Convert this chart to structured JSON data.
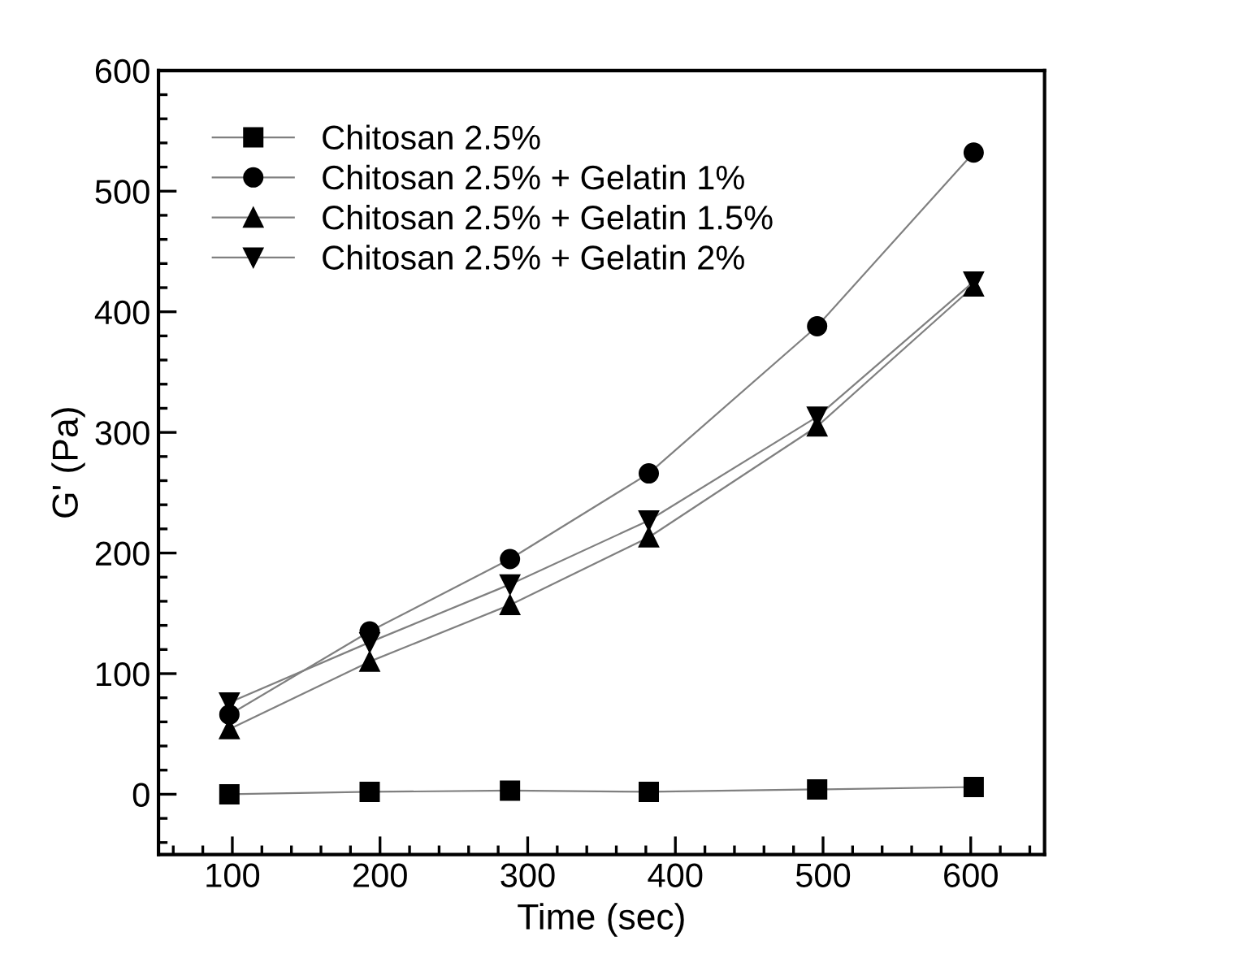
{
  "chart_data": {
    "type": "line",
    "xlabel": "Time (sec)",
    "ylabel": "G' (Pa)",
    "x": [
      98,
      193,
      288,
      382,
      496,
      602
    ],
    "series": [
      {
        "name": "Chitosan 2.5%",
        "color": "#000000",
        "marker": "square",
        "values": [
          0,
          2,
          3,
          2,
          4,
          6
        ]
      },
      {
        "name": "Chitosan 2.5% + Gelatin 1%",
        "color": "#000000",
        "marker": "circle",
        "values": [
          66,
          135,
          195,
          266,
          388,
          532
        ]
      },
      {
        "name": "Chitosan 2.5% + Gelatin 1.5%",
        "color": "#000000",
        "marker": "triangle",
        "values": [
          54,
          110,
          157,
          213,
          305,
          421
        ]
      },
      {
        "name": "Chitosan 2.5% + Gelatin 2%",
        "color": "#000000",
        "marker": "triangle_down",
        "values": [
          76,
          126,
          174,
          227,
          313,
          425
        ]
      }
    ],
    "xlim": [
      50,
      650
    ],
    "ylim": [
      -50,
      600
    ],
    "xticks": [
      {
        "value": 60,
        "label": null
      },
      {
        "value": 80,
        "label": null
      },
      100,
      {
        "value": 120,
        "label": null
      },
      {
        "value": 140,
        "label": null
      },
      {
        "value": 160,
        "label": null
      },
      {
        "value": 180,
        "label": null
      },
      200,
      {
        "value": 220,
        "label": null
      },
      {
        "value": 240,
        "label": null
      },
      {
        "value": 260,
        "label": null
      },
      {
        "value": 280,
        "label": null
      },
      300,
      {
        "value": 320,
        "label": null
      },
      {
        "value": 340,
        "label": null
      },
      {
        "value": 360,
        "label": null
      },
      {
        "value": 380,
        "label": null
      },
      400,
      {
        "value": 420,
        "label": null
      },
      {
        "value": 440,
        "label": null
      },
      {
        "value": 460,
        "label": null
      },
      {
        "value": 480,
        "label": null
      },
      500,
      {
        "value": 520,
        "label": null
      },
      {
        "value": 540,
        "label": null
      },
      {
        "value": 560,
        "label": null
      },
      {
        "value": 580,
        "label": null
      },
      600,
      {
        "value": 620,
        "label": null
      },
      {
        "value": 640,
        "label": null
      }
    ],
    "yticks": [
      {
        "value": -40,
        "label": null
      },
      {
        "value": -20,
        "label": null
      },
      0,
      {
        "value": 20,
        "label": null
      },
      {
        "value": 40,
        "label": null
      },
      {
        "value": 60,
        "label": null
      },
      {
        "value": 80,
        "label": null
      },
      100,
      {
        "value": 120,
        "label": null
      },
      {
        "value": 140,
        "label": null
      },
      {
        "value": 160,
        "label": null
      },
      {
        "value": 180,
        "label": null
      },
      200,
      {
        "value": 220,
        "label": null
      },
      {
        "value": 240,
        "label": null
      },
      {
        "value": 260,
        "label": null
      },
      {
        "value": 280,
        "label": null
      },
      300,
      {
        "value": 320,
        "label": null
      },
      {
        "value": 340,
        "label": null
      },
      {
        "value": 360,
        "label": null
      },
      {
        "value": 380,
        "label": null
      },
      400,
      {
        "value": 420,
        "label": null
      },
      {
        "value": 440,
        "label": null
      },
      {
        "value": 460,
        "label": null
      },
      {
        "value": 480,
        "label": null
      },
      500,
      {
        "value": 520,
        "label": null
      },
      {
        "value": 540,
        "label": null
      },
      {
        "value": 560,
        "label": null
      },
      {
        "value": 580,
        "label": null
      },
      600
    ],
    "grid": false,
    "legend": "top left",
    "line_style": "solid"
  }
}
